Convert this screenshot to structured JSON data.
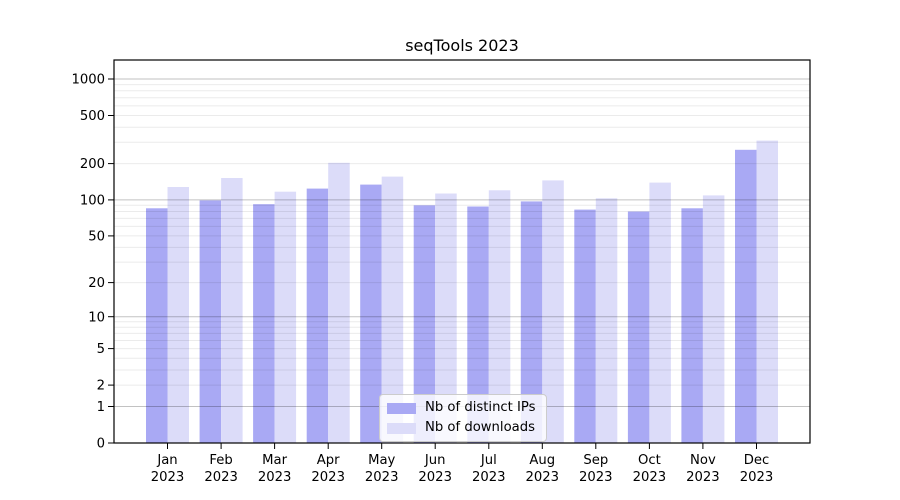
{
  "figure": {
    "background": "#ffffff"
  },
  "chart_data": {
    "type": "bar",
    "title": "seqTools 2023",
    "categories": [
      "Jan",
      "Feb",
      "Mar",
      "Apr",
      "May",
      "Jun",
      "Jul",
      "Aug",
      "Sep",
      "Oct",
      "Nov",
      "Dec"
    ],
    "category_sublabel": "2023",
    "series": [
      {
        "name": "Nb of distinct IPs",
        "color": "#a9a9f4",
        "values": [
          85,
          99,
          92,
          124,
          134,
          90,
          88,
          97,
          83,
          80,
          85,
          260
        ]
      },
      {
        "name": "Nb of downloads",
        "color": "#dcdcf9",
        "values": [
          128,
          152,
          117,
          203,
          156,
          113,
          120,
          145,
          103,
          139,
          109,
          310
        ]
      }
    ],
    "xlabel": "",
    "ylabel": "",
    "y_scale": "log10(value+1)",
    "y_ticks": [
      0,
      1,
      2,
      5,
      10,
      20,
      50,
      100,
      200,
      500,
      1000
    ],
    "ylim": [
      0,
      1435
    ],
    "grid": "horizontal major+minor",
    "legend_position": "lower center inside plot",
    "colors": {
      "major_grid": "rgba(0,0,0,0.24)",
      "minor_grid": "rgba(0,0,0,0.08)",
      "spine": "#000000",
      "text": "#000000",
      "legend_border": "#cccccc",
      "legend_bg": "rgba(255,255,255,0.8)"
    }
  }
}
